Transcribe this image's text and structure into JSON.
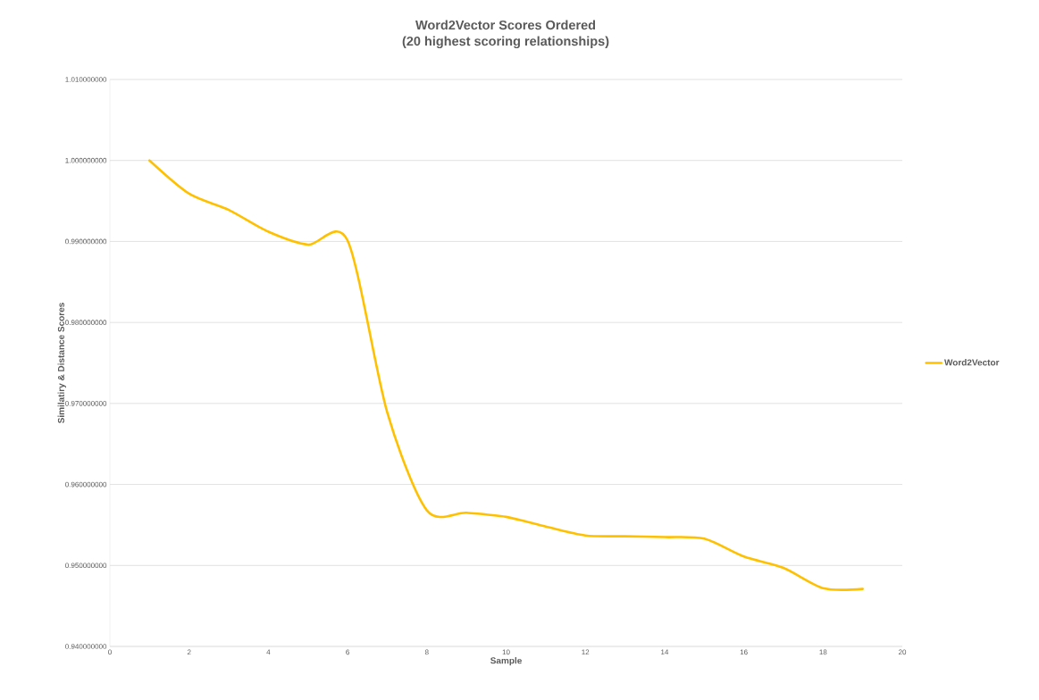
{
  "chart_data": {
    "type": "line",
    "title": "Word2Vector Scores Ordered",
    "subtitle": "(20 highest scoring relationships)",
    "xlabel": "Sample",
    "ylabel": "Similatiry & Distance Scores",
    "x": [
      1,
      2,
      3,
      4,
      5,
      6,
      7,
      8,
      9,
      10,
      11,
      12,
      13,
      14,
      15,
      16,
      17,
      18,
      19
    ],
    "series": [
      {
        "name": "Word2Vector",
        "color": "#ffc000",
        "values": [
          1.0,
          0.9959,
          0.9939,
          0.9912,
          0.9896,
          0.9901,
          0.9689,
          0.9568,
          0.9565,
          0.956,
          0.9548,
          0.9537,
          0.9536,
          0.9535,
          0.9533,
          0.9511,
          0.9497,
          0.9472,
          0.9471
        ]
      }
    ],
    "xlim": [
      0,
      20
    ],
    "xticks": [
      0,
      2,
      4,
      6,
      8,
      10,
      12,
      14,
      16,
      18,
      20
    ],
    "ylim": [
      0.94,
      1.01
    ],
    "yticks": [
      {
        "value": 0.94,
        "label": "0.940000000"
      },
      {
        "value": 0.95,
        "label": "0.950000000"
      },
      {
        "value": 0.96,
        "label": "0.960000000"
      },
      {
        "value": 0.97,
        "label": "0.970000000"
      },
      {
        "value": 0.98,
        "label": "0.980000000"
      },
      {
        "value": 0.99,
        "label": "0.990000000"
      },
      {
        "value": 1.0,
        "label": "1.000000000"
      },
      {
        "value": 1.01,
        "label": "1.010000000"
      }
    ],
    "grid": "y",
    "legend": "right",
    "marker": "none",
    "line_style": "solid"
  }
}
